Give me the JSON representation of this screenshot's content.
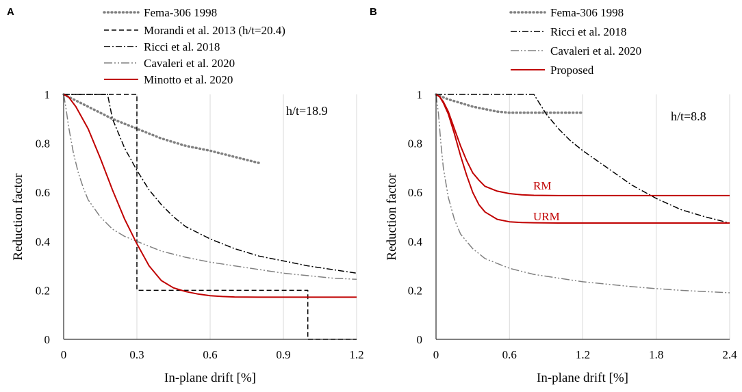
{
  "chart_data": [
    {
      "panel": "A",
      "type": "line",
      "xlabel": "In-plane drift  [%]",
      "ylabel": "Reduction factor",
      "xlim": [
        0,
        1.2
      ],
      "ylim": [
        0,
        1
      ],
      "xticks": [
        0,
        0.3,
        0.6,
        0.9,
        1.2
      ],
      "xtick_labels": [
        "0",
        "0.3",
        "0.6",
        "0.9",
        "1.2"
      ],
      "yticks": [
        0,
        0.2,
        0.4,
        0.6,
        0.8,
        1
      ],
      "ytick_labels": [
        "0",
        "0.2",
        "0.4",
        "0.6",
        "0.8",
        "1"
      ],
      "annotations": [
        {
          "text": "h/t=18.9"
        }
      ],
      "series": [
        {
          "name": "Fema-306 1998",
          "style": "dotted",
          "color": "#808080",
          "x": [
            0,
            0.1,
            0.2,
            0.3,
            0.4,
            0.5,
            0.6,
            0.7,
            0.8
          ],
          "y": [
            1.0,
            0.95,
            0.9,
            0.86,
            0.82,
            0.79,
            0.77,
            0.745,
            0.72
          ]
        },
        {
          "name": "Morandi et al. 2013 (h/t=20.4)",
          "style": "dashed",
          "color": "#000000",
          "x": [
            0,
            0.3,
            0.3,
            1.0,
            1.0,
            1.2
          ],
          "y": [
            1.0,
            1.0,
            0.2,
            0.2,
            0.0,
            0.0
          ]
        },
        {
          "name": "Ricci et al. 2018",
          "style": "dashdot",
          "color": "#000000",
          "x": [
            0,
            0.18,
            0.2,
            0.25,
            0.3,
            0.35,
            0.4,
            0.45,
            0.5,
            0.6,
            0.7,
            0.8,
            0.9,
            1.0,
            1.1,
            1.2
          ],
          "y": [
            1.0,
            1.0,
            0.9,
            0.78,
            0.69,
            0.61,
            0.55,
            0.5,
            0.46,
            0.41,
            0.37,
            0.34,
            0.32,
            0.3,
            0.285,
            0.27
          ]
        },
        {
          "name": "Cavaleri et al. 2020",
          "style": "dashdotdot",
          "color": "#808080",
          "x": [
            0,
            0.01,
            0.02,
            0.04,
            0.06,
            0.08,
            0.1,
            0.15,
            0.2,
            0.25,
            0.3,
            0.4,
            0.5,
            0.6,
            0.7,
            0.8,
            0.9,
            1.0,
            1.1,
            1.2
          ],
          "y": [
            1.0,
            0.94,
            0.87,
            0.76,
            0.68,
            0.62,
            0.57,
            0.5,
            0.45,
            0.42,
            0.4,
            0.36,
            0.335,
            0.315,
            0.3,
            0.285,
            0.27,
            0.26,
            0.25,
            0.245
          ]
        },
        {
          "name": "Minotto et al. 2020",
          "style": "solid",
          "color": "#c00000",
          "x": [
            0,
            0.02,
            0.05,
            0.1,
            0.15,
            0.2,
            0.25,
            0.3,
            0.35,
            0.4,
            0.45,
            0.5,
            0.55,
            0.6,
            0.65,
            0.7,
            0.8,
            0.9,
            1.0,
            1.1,
            1.2
          ],
          "y": [
            1.0,
            0.99,
            0.95,
            0.86,
            0.74,
            0.61,
            0.49,
            0.39,
            0.3,
            0.24,
            0.21,
            0.195,
            0.185,
            0.178,
            0.175,
            0.173,
            0.172,
            0.172,
            0.172,
            0.172,
            0.172
          ]
        }
      ]
    },
    {
      "panel": "B",
      "type": "line",
      "xlabel": "In-plane drift  [%]",
      "ylabel": "Reduction factor",
      "xlim": [
        0,
        2.4
      ],
      "ylim": [
        0,
        1
      ],
      "xticks": [
        0,
        0.6,
        1.2,
        1.8,
        2.4
      ],
      "xtick_labels": [
        "0",
        "0.6",
        "1.2",
        "1.8",
        "2.4"
      ],
      "yticks": [
        0,
        0.2,
        0.4,
        0.6,
        0.8,
        1
      ],
      "ytick_labels": [
        "0",
        "0.2",
        "0.4",
        "0.6",
        "0.8",
        "1"
      ],
      "annotations": [
        {
          "text": "h/t=8.8"
        },
        {
          "text": "RM"
        },
        {
          "text": "URM"
        }
      ],
      "series": [
        {
          "name": "Fema-306 1998",
          "style": "dotted",
          "color": "#808080",
          "x": [
            0,
            0.1,
            0.2,
            0.3,
            0.4,
            0.5,
            0.6,
            0.8,
            1.0,
            1.2
          ],
          "y": [
            1.0,
            0.98,
            0.965,
            0.95,
            0.94,
            0.93,
            0.925,
            0.925,
            0.925,
            0.925
          ]
        },
        {
          "name": "Ricci et al. 2018",
          "style": "dashdot",
          "color": "#000000",
          "x": [
            0,
            0.8,
            0.9,
            1.0,
            1.1,
            1.2,
            1.4,
            1.6,
            1.8,
            2.0,
            2.2,
            2.4
          ],
          "y": [
            1.0,
            1.0,
            0.92,
            0.86,
            0.81,
            0.77,
            0.7,
            0.63,
            0.575,
            0.53,
            0.5,
            0.475
          ]
        },
        {
          "name": "Cavaleri et al. 2020",
          "style": "dashdotdot",
          "color": "#808080",
          "x": [
            0,
            0.02,
            0.04,
            0.06,
            0.1,
            0.15,
            0.2,
            0.3,
            0.4,
            0.6,
            0.8,
            1.0,
            1.2,
            1.4,
            1.6,
            1.8,
            2.0,
            2.2,
            2.4
          ],
          "y": [
            1.0,
            0.92,
            0.8,
            0.7,
            0.58,
            0.49,
            0.43,
            0.37,
            0.33,
            0.29,
            0.265,
            0.25,
            0.235,
            0.225,
            0.215,
            0.207,
            0.2,
            0.195,
            0.19
          ]
        },
        {
          "name": "Proposed RM",
          "style": "solid",
          "color": "#c00000",
          "x": [
            0,
            0.03,
            0.06,
            0.1,
            0.15,
            0.2,
            0.25,
            0.3,
            0.35,
            0.4,
            0.5,
            0.6,
            0.7,
            0.8,
            1.0,
            1.2,
            1.8,
            2.4
          ],
          "y": [
            1.0,
            0.99,
            0.97,
            0.93,
            0.86,
            0.79,
            0.73,
            0.68,
            0.65,
            0.625,
            0.605,
            0.595,
            0.59,
            0.588,
            0.587,
            0.587,
            0.587,
            0.587
          ]
        },
        {
          "name": "Proposed URM",
          "style": "solid",
          "color": "#c00000",
          "x": [
            0,
            0.03,
            0.06,
            0.1,
            0.15,
            0.2,
            0.25,
            0.3,
            0.35,
            0.4,
            0.5,
            0.6,
            0.7,
            0.8,
            1.0,
            1.2,
            1.8,
            2.4
          ],
          "y": [
            1.0,
            0.99,
            0.965,
            0.92,
            0.84,
            0.75,
            0.67,
            0.6,
            0.55,
            0.52,
            0.49,
            0.48,
            0.477,
            0.476,
            0.475,
            0.475,
            0.475,
            0.475
          ]
        }
      ]
    }
  ],
  "legends": {
    "A": [
      "Fema-306 1998",
      "Morandi et al. 2013 (h/t=20.4)",
      "Ricci et al. 2018",
      "Cavaleri et al. 2020",
      "Minotto et al. 2020"
    ],
    "B": [
      "Fema-306 1998",
      "Ricci et al. 2018",
      "Cavaleri et al. 2020",
      "Proposed"
    ]
  }
}
